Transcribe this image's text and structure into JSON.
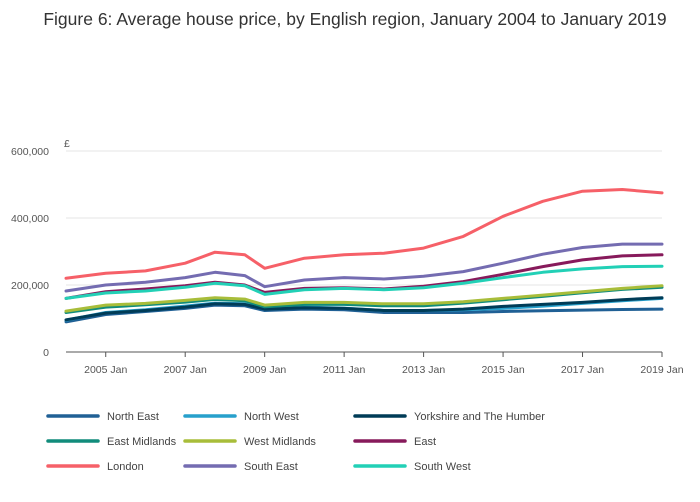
{
  "chart_data": {
    "type": "line",
    "title": "Figure 6: Average house price, by English region, January 2004 to January 2019",
    "ylabel": "£",
    "xlabel": "",
    "x_start": 2004.0,
    "x_end": 2019.0,
    "ylim": [
      0,
      600000
    ],
    "yticks": [
      0,
      200000,
      400000,
      600000
    ],
    "ytick_labels": [
      "0",
      "200,000",
      "400,000",
      "600,000"
    ],
    "xticks": [
      2005,
      2007,
      2009,
      2011,
      2013,
      2015,
      2017,
      2019
    ],
    "xtick_labels": [
      "2005 Jan",
      "2007 Jan",
      "2009 Jan",
      "2011 Jan",
      "2013 Jan",
      "2015 Jan",
      "2017 Jan",
      "2019 Jan"
    ],
    "x": [
      2004,
      2005,
      2006,
      2007,
      2007.75,
      2008.5,
      2009,
      2010,
      2011,
      2012,
      2013,
      2014,
      2015,
      2016,
      2017,
      2018,
      2019
    ],
    "series": [
      {
        "name": "North East",
        "color": "#206095",
        "values": [
          90000,
          112000,
          121000,
          130000,
          140000,
          138000,
          124000,
          128000,
          126000,
          118000,
          118000,
          118000,
          121000,
          123000,
          125000,
          127000,
          128000
        ]
      },
      {
        "name": "North West",
        "color": "#27a0cc",
        "values": [
          95000,
          118000,
          126000,
          137000,
          146000,
          144000,
          130000,
          134000,
          131000,
          124000,
          124000,
          126000,
          130000,
          137000,
          145000,
          153000,
          160000
        ]
      },
      {
        "name": "Yorkshire and The Humber",
        "color": "#003c57",
        "values": [
          96000,
          116000,
          124000,
          134000,
          144000,
          142000,
          128000,
          132000,
          130000,
          124000,
          124000,
          128000,
          136000,
          142000,
          148000,
          156000,
          162000
        ]
      },
      {
        "name": "East Midlands",
        "color": "#118c7b",
        "values": [
          118000,
          134000,
          141000,
          149000,
          157000,
          153000,
          135000,
          142000,
          142000,
          138000,
          138000,
          146000,
          156000,
          166000,
          177000,
          187000,
          193000
        ]
      },
      {
        "name": "West Midlands",
        "color": "#a8bd3a",
        "values": [
          122000,
          140000,
          145000,
          154000,
          162000,
          158000,
          140000,
          148000,
          148000,
          144000,
          144000,
          150000,
          160000,
          170000,
          180000,
          190000,
          198000
        ]
      },
      {
        "name": "East",
        "color": "#871a5b",
        "values": [
          160000,
          180000,
          188000,
          198000,
          208000,
          200000,
          178000,
          190000,
          192000,
          188000,
          196000,
          210000,
          232000,
          255000,
          275000,
          287000,
          290000
        ]
      },
      {
        "name": "London",
        "color": "#f66068",
        "values": [
          220000,
          235000,
          242000,
          265000,
          298000,
          290000,
          250000,
          280000,
          290000,
          295000,
          310000,
          345000,
          405000,
          450000,
          480000,
          485000,
          475000
        ]
      },
      {
        "name": "South East",
        "color": "#746cb1",
        "values": [
          182000,
          200000,
          208000,
          222000,
          238000,
          228000,
          195000,
          215000,
          222000,
          218000,
          226000,
          240000,
          265000,
          292000,
          312000,
          322000,
          322000
        ]
      },
      {
        "name": "South West",
        "color": "#22d0b6",
        "values": [
          160000,
          176000,
          182000,
          193000,
          205000,
          198000,
          172000,
          186000,
          190000,
          186000,
          192000,
          205000,
          222000,
          238000,
          248000,
          255000,
          256000
        ]
      }
    ],
    "legend_position": "bottom",
    "grid": "horizontal"
  }
}
